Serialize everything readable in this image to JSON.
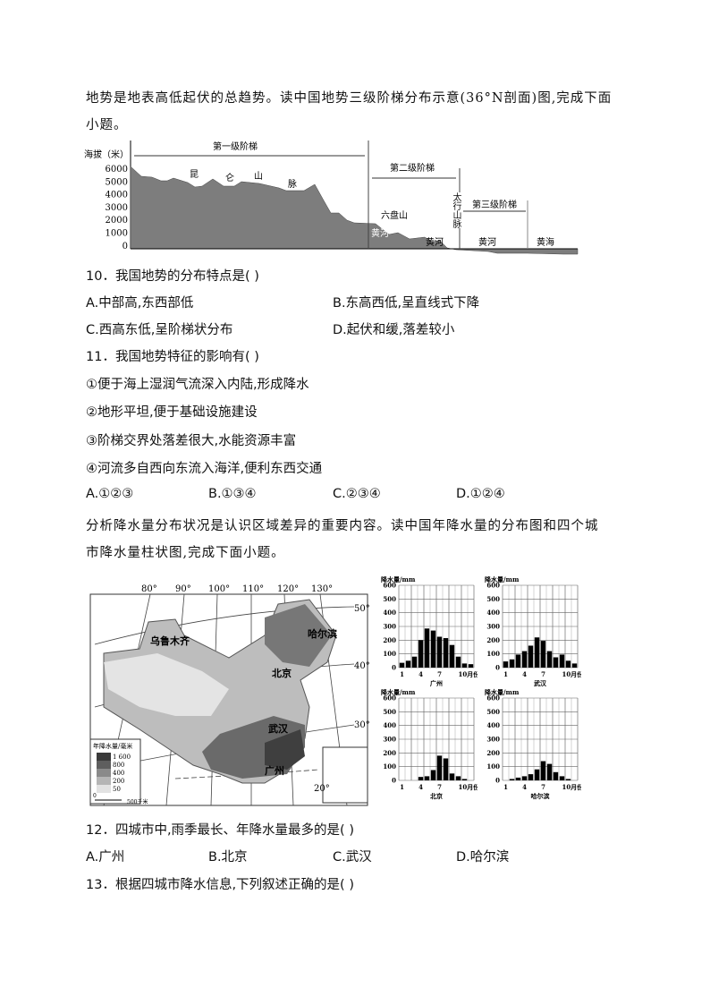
{
  "intro1": {
    "line1": "地势是地表高低起伏的总趋势。读中国地势三级阶梯分布示意(36°N剖面)图,完成下面",
    "line2": "小题。"
  },
  "profile": {
    "ylabel": "海拔（米）",
    "yticks": [
      "6000",
      "5000",
      "4000",
      "3000",
      "2000",
      "1000",
      "0"
    ],
    "steps": [
      "第一级阶梯",
      "第二级阶梯",
      "第三级阶梯"
    ],
    "labels": {
      "kun": "昆",
      "lun": "仑",
      "shan": "山",
      "mai": "脉",
      "liupan": "六盘山",
      "huanghe1": "黄河",
      "huanghe2": "黄河",
      "taihang": "太行山脉",
      "huanghe3": "黄河",
      "huanghai": "黄海"
    }
  },
  "q10": {
    "stem": "10．我国地势的分布特点是( )",
    "options": [
      "A.中部高,东西部低",
      "B.东高西低,呈直线式下降",
      "C.西高东低,呈阶梯状分布",
      "D.起伏和缓,落差较小"
    ]
  },
  "q11": {
    "stem": "11．我国地势特征的影响有( )",
    "items": [
      "①便于海上湿润气流深入内陆,形成降水",
      "②地形平坦,便于基础设施建设",
      "③阶梯交界处落差很大,水能资源丰富",
      "④河流多自西向东流入海洋,便利东西交通"
    ],
    "options": [
      "A.①②③",
      "B.①③④",
      "C.②③④",
      "D.①②④"
    ]
  },
  "intro2": {
    "line1": "分析降水量分布状况是认识区域差异的重要内容。读中国年降水量的分布图和四个城",
    "line2": "市降水量柱状图,完成下面小题。"
  },
  "map": {
    "lon": [
      "80°",
      "90°",
      "100°",
      "110°",
      "120°",
      "130°"
    ],
    "lat": [
      "50°",
      "40°",
      "30°",
      "20°"
    ],
    "cities": [
      "乌鲁木齐",
      "哈尔滨",
      "北京",
      "武汉",
      "广州"
    ],
    "legend_title": "年降水量/毫米",
    "legend": [
      "1 600",
      "800",
      "400",
      "200",
      "50"
    ],
    "legend_colors": [
      "#3a3a3a",
      "#5e5e5e",
      "#8a8a8a",
      "#b5b5b5",
      "#e2e2e2"
    ],
    "scale": [
      "0",
      "500千米"
    ]
  },
  "charts": [
    {
      "city": "广州",
      "ylabel": "降水量/mm",
      "xunit": "10月份",
      "yticks": [
        "600",
        "500",
        "400",
        "300",
        "200",
        "100",
        "0"
      ],
      "xticks": [
        "1",
        "4",
        "7",
        "10月份"
      ],
      "values": [
        35,
        50,
        80,
        200,
        285,
        270,
        225,
        215,
        165,
        80,
        30,
        25
      ]
    },
    {
      "city": "武汉",
      "ylabel": "降水量/mm",
      "xunit": "10月份",
      "yticks": [
        "600",
        "500",
        "400",
        "300",
        "200",
        "100",
        "0"
      ],
      "xticks": [
        "1",
        "4",
        "7",
        "10月份"
      ],
      "values": [
        45,
        60,
        95,
        120,
        160,
        220,
        195,
        120,
        75,
        95,
        50,
        30
      ]
    },
    {
      "city": "北京",
      "ylabel": "降水量/mm",
      "xunit": "10月份",
      "yticks": [
        "600",
        "500",
        "400",
        "300",
        "200",
        "100",
        "0"
      ],
      "xticks": [
        "1",
        "4",
        "7",
        "10月份"
      ],
      "values": [
        0,
        0,
        0,
        25,
        30,
        75,
        180,
        160,
        50,
        30,
        10,
        0
      ]
    },
    {
      "city": "哈尔滨",
      "ylabel": "降水量/mm",
      "xunit": "10月份",
      "yticks": [
        "600",
        "500",
        "400",
        "300",
        "200",
        "100",
        "0"
      ],
      "xticks": [
        "1",
        "4",
        "7",
        "10月份"
      ],
      "values": [
        0,
        10,
        20,
        30,
        45,
        80,
        140,
        120,
        60,
        30,
        10,
        0
      ]
    }
  ],
  "q12": {
    "stem": "12．四城市中,雨季最长、年降水量最多的是( )",
    "options": [
      "A.广州",
      "B.北京",
      "C.武汉",
      "D.哈尔滨"
    ]
  },
  "q13": {
    "stem": "13．根据四城市降水信息,下列叙述正确的是( )"
  }
}
